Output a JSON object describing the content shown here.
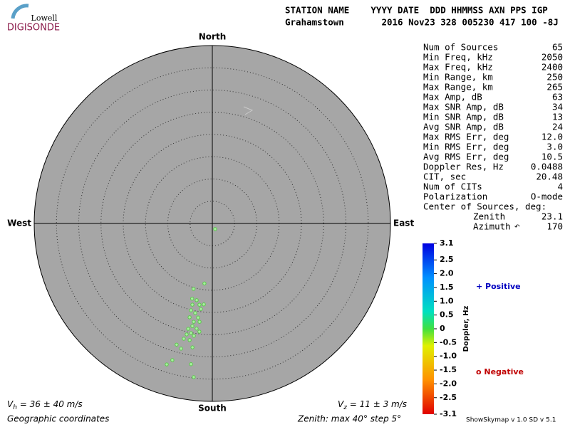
{
  "logo": {
    "top": "Lowell",
    "bottom": "DIGISONDE"
  },
  "header": {
    "line1": "STATION NAME    YYYY DATE  DDD HHMMSS AXN PPS IGP",
    "line2": "Grahamstown       2016 Nov23 328 005230 417 100 -8J"
  },
  "directions": {
    "north": "North",
    "south": "South",
    "east": "East",
    "west": "West"
  },
  "polar": {
    "zenith_max": 40,
    "zenith_step": 5
  },
  "sources": [
    {
      "zenith": 13.6,
      "azimuth": 187.5
    },
    {
      "zenith": 15.3,
      "azimuth": 196
    },
    {
      "zenith": 17.5,
      "azimuth": 195
    },
    {
      "zenith": 17.6,
      "azimuth": 191.5
    },
    {
      "zenith": 18.8,
      "azimuth": 193.8
    },
    {
      "zenith": 18.5,
      "azimuth": 189
    },
    {
      "zenith": 18.3,
      "azimuth": 186
    },
    {
      "zenith": 20.1,
      "azimuth": 193.8
    },
    {
      "zenith": 20.5,
      "azimuth": 190.8
    },
    {
      "zenith": 19.4,
      "azimuth": 187.6
    },
    {
      "zenith": 21.4,
      "azimuth": 188.6
    },
    {
      "zenith": 21.7,
      "azimuth": 193.6
    },
    {
      "zenith": 22.5,
      "azimuth": 190.7
    },
    {
      "zenith": 22.3,
      "azimuth": 187.4
    },
    {
      "zenith": 23.5,
      "azimuth": 191
    },
    {
      "zenith": 23.9,
      "azimuth": 188.5
    },
    {
      "zenith": 24.3,
      "azimuth": 192.9
    },
    {
      "zenith": 25.1,
      "azimuth": 191
    },
    {
      "zenith": 24.5,
      "azimuth": 186.8
    },
    {
      "zenith": 25.6,
      "azimuth": 193
    },
    {
      "zenith": 25.6,
      "azimuth": 189.3
    },
    {
      "zenith": 26.7,
      "azimuth": 191
    },
    {
      "zenith": 26.7,
      "azimuth": 193.9
    },
    {
      "zenith": 28.4,
      "azimuth": 196.4
    },
    {
      "zenith": 28.2,
      "azimuth": 189.1
    },
    {
      "zenith": 32,
      "azimuth": 196.3
    },
    {
      "zenith": 33.3,
      "azimuth": 197.9
    },
    {
      "zenith": 32,
      "azimuth": 188.6
    },
    {
      "zenith": 29,
      "azimuth": 194
    },
    {
      "zenith": 34.8,
      "azimuth": 186.9
    },
    {
      "zenith": 1.4,
      "azimuth": 153.4
    }
  ],
  "stats": [
    [
      "Num of Sources",
      "65"
    ],
    [
      "Min Freq, kHz",
      "2050"
    ],
    [
      "Max Freq, kHz",
      "2400"
    ],
    [
      "Min Range, km",
      "250"
    ],
    [
      "Max Range, km",
      "265"
    ],
    [
      "Max Amp, dB",
      "63"
    ],
    [
      "Max SNR Amp, dB",
      "34"
    ],
    [
      "Min SNR Amp, dB",
      "13"
    ],
    [
      "Avg SNR Amp, dB",
      "24"
    ],
    [
      "Max RMS Err, deg",
      "12.0"
    ],
    [
      "Min RMS Err, deg",
      "3.0"
    ],
    [
      "Avg RMS Err, deg",
      "10.5"
    ],
    [
      "Doppler Res, Hz",
      "0.0488"
    ],
    [
      "CIT, sec",
      "20.48"
    ],
    [
      "Num of CITs",
      "4"
    ],
    [
      "Polarization",
      "O-mode"
    ]
  ],
  "center": {
    "title": "Center of Sources, deg:",
    "zenith_label": "Zenith",
    "zenith": "23.1",
    "azimuth_label": "Azimuth",
    "azimuth": "170"
  },
  "colorbar": {
    "title": "Doppler, Hz",
    "lim": [
      -3.1,
      3.1
    ],
    "ticks": [
      3.1,
      2.5,
      {
        "value": 2,
        "label": "2.0"
      },
      1.5,
      {
        "value": 1,
        "label": "1.0"
      },
      0.5,
      0,
      -0.5,
      {
        "value": -1,
        "label": "-1.0"
      },
      -1.5,
      {
        "value": -2,
        "label": "-2.0"
      },
      -2.5,
      -3.1
    ]
  },
  "legend": {
    "positive": "+ Positive",
    "negative": "o Negative"
  },
  "footer": {
    "vh": {
      "symbol": "V",
      "sub": "h",
      "text": " = 36 ± 40 m/s"
    },
    "vz": {
      "symbol": "V",
      "sub": "z",
      "text": " = 11 ± 3 m/s"
    },
    "coords": "Geographic coordinates",
    "zenith_info": "Zenith: max 40°  step 5°",
    "version": "ShowSkymap v 1.0  SD v 5.1"
  }
}
